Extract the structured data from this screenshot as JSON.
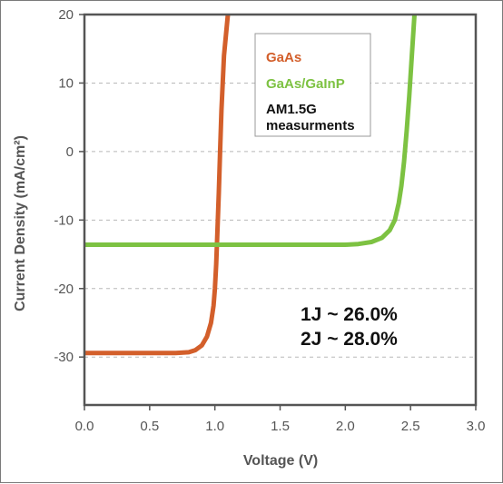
{
  "chart_data": {
    "type": "line",
    "xlabel": "Voltage (V)",
    "ylabel": "Current Density (mA/cm²)",
    "xlim": [
      0.0,
      3.0
    ],
    "ylim": [
      -37,
      20
    ],
    "x_ticks": [
      "0.0",
      "0.5",
      "1.0",
      "1.5",
      "2.0",
      "2.5",
      "3.0"
    ],
    "y_ticks": [
      "20",
      "10",
      "0",
      "-10",
      "-20",
      "-30"
    ],
    "grid": "dashed horizontal",
    "legend": {
      "position": "top-right",
      "entries": [
        "GaAs",
        "GaAs/GaInP"
      ],
      "note_lines": [
        "AM1.5G",
        "measurments"
      ]
    },
    "annotations": [
      "1J ~ 26.0%",
      "2J ~ 28.0%"
    ],
    "colors": {
      "GaAs": "#d35f2b",
      "GaAs/GaInP": "#7dc242",
      "frame": "#555555",
      "grid": "#b8b8b8"
    },
    "series": [
      {
        "name": "GaAs",
        "x": [
          0.0,
          0.7,
          0.8,
          0.85,
          0.9,
          0.94,
          0.97,
          0.99,
          1.0,
          1.01,
          1.02,
          1.03,
          1.04,
          1.05,
          1.07,
          1.1
        ],
        "y": [
          -29.4,
          -29.4,
          -29.3,
          -29.0,
          -28.3,
          -27.0,
          -25.0,
          -22.5,
          -20.0,
          -16.5,
          -11.5,
          -6.0,
          0.0,
          6.0,
          14.0,
          20.0
        ]
      },
      {
        "name": "GaAs/GaInP",
        "x": [
          0.0,
          1.0,
          2.0,
          2.1,
          2.2,
          2.28,
          2.34,
          2.38,
          2.41,
          2.43,
          2.45,
          2.47,
          2.49,
          2.51,
          2.53
        ],
        "y": [
          -13.6,
          -13.6,
          -13.6,
          -13.5,
          -13.2,
          -12.6,
          -11.5,
          -10.0,
          -7.5,
          -5.0,
          -1.5,
          3.0,
          8.0,
          14.0,
          20.0
        ]
      }
    ]
  }
}
